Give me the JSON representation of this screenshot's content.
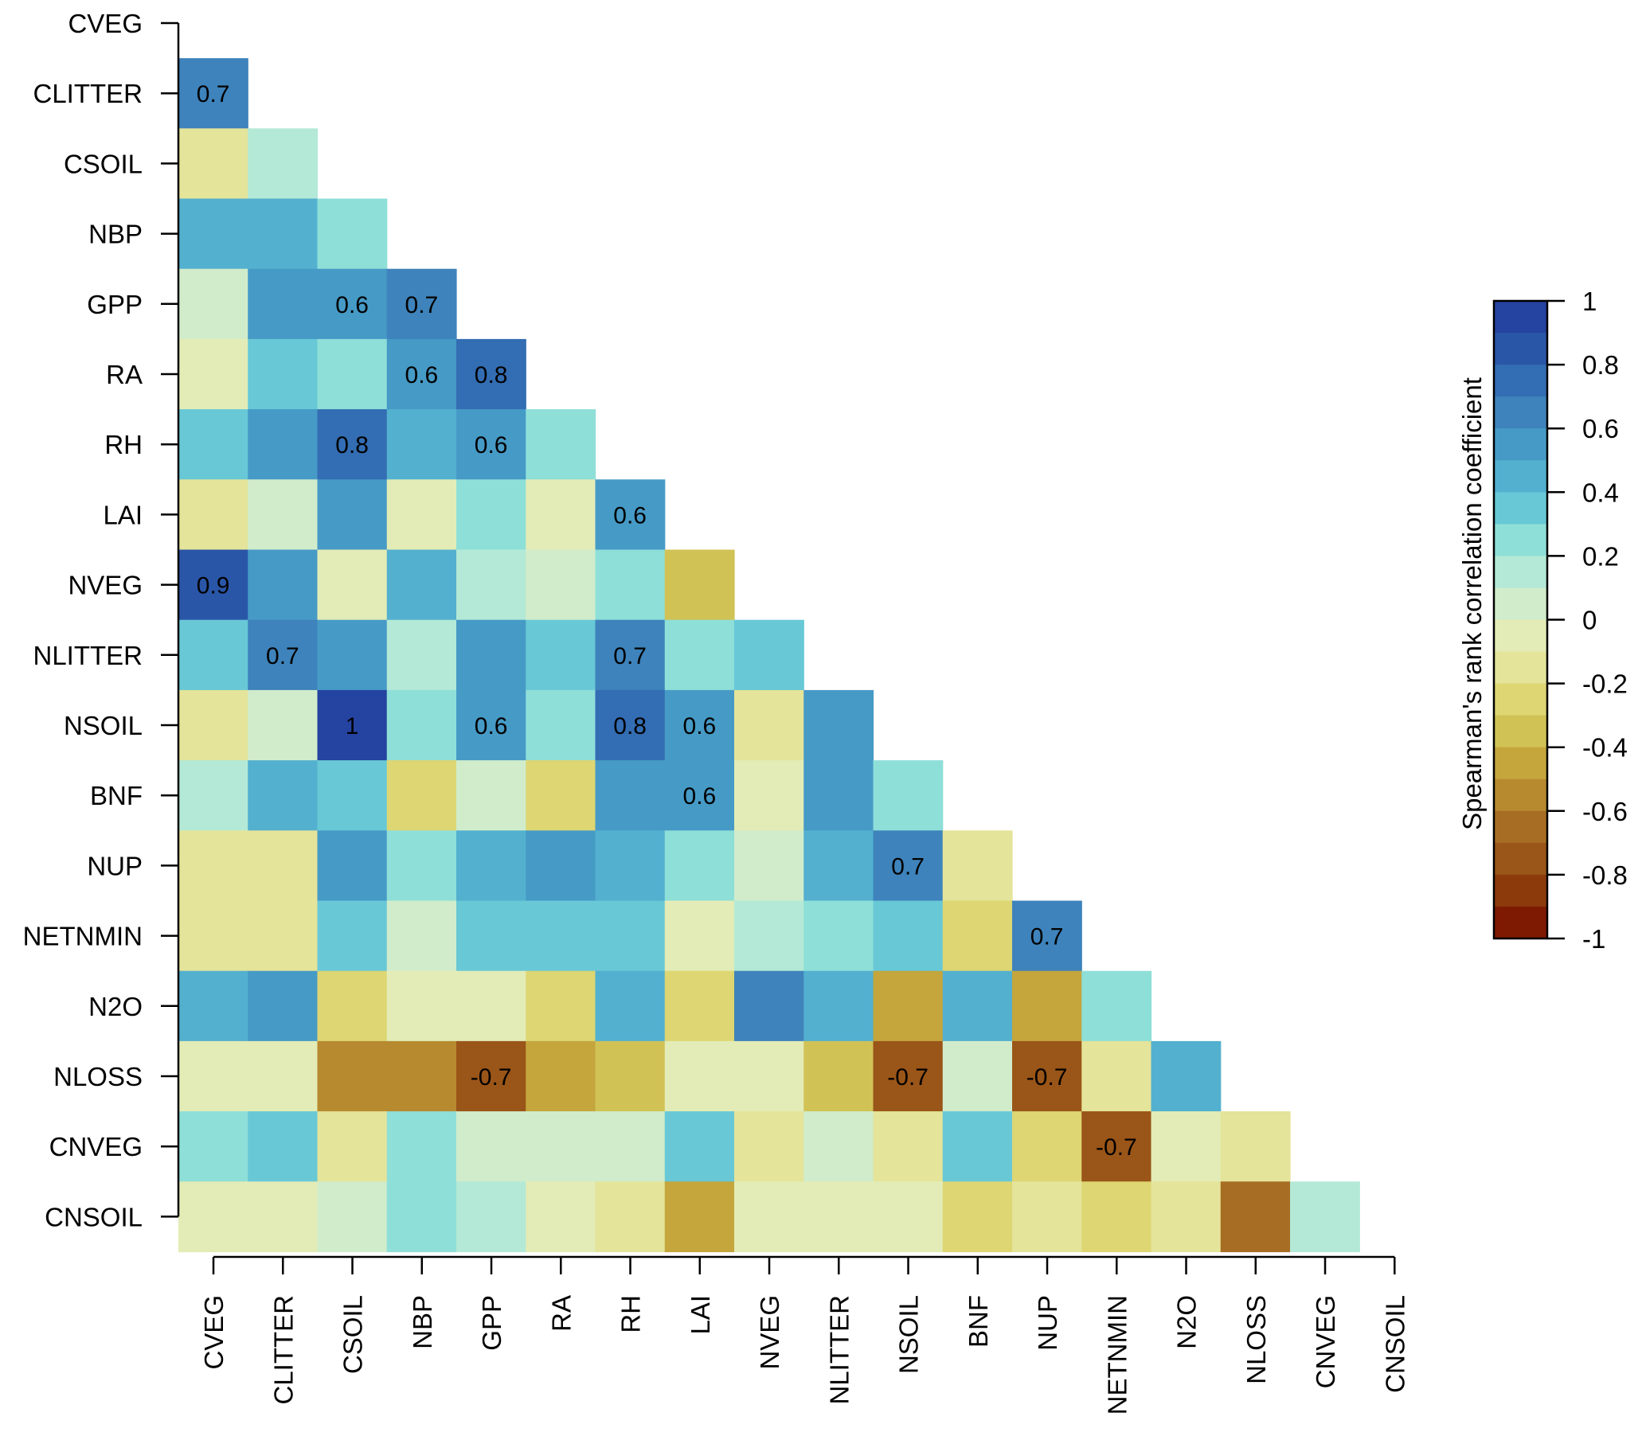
{
  "chart_data": {
    "type": "heatmap",
    "title": "",
    "subtype": "lower-triangular correlation matrix",
    "variables": [
      "CVEG",
      "CLITTER",
      "CSOIL",
      "NBP",
      "GPP",
      "RA",
      "RH",
      "LAI",
      "NVEG",
      "NLITTER",
      "NSOIL",
      "BNF",
      "NUP",
      "NETNMIN",
      "N2O",
      "NLOSS",
      "CNVEG",
      "CNSOIL"
    ],
    "rows": [
      "CVEG",
      "CLITTER",
      "CSOIL",
      "NBP",
      "GPP",
      "RA",
      "RH",
      "LAI",
      "NVEG",
      "NLITTER",
      "NSOIL",
      "BNF",
      "NUP",
      "NETNMIN",
      "N2O",
      "NLOSS",
      "CNVEG",
      "CNSOIL"
    ],
    "columns": [
      "CVEG",
      "CLITTER",
      "CSOIL",
      "NBP",
      "GPP",
      "RA",
      "RH",
      "LAI",
      "NVEG",
      "NLITTER",
      "NSOIL",
      "BNF",
      "NUP",
      "NETNMIN",
      "N2O",
      "NLOSS",
      "CNVEG",
      "CNSOIL"
    ],
    "values": [
      [],
      [
        0.7
      ],
      [
        -0.15,
        0.15
      ],
      [
        0.45,
        0.45,
        0.25
      ],
      [
        0.05,
        0.55,
        0.6,
        0.7
      ],
      [
        -0.05,
        0.35,
        0.25,
        0.6,
        0.8
      ],
      [
        0.35,
        0.55,
        0.8,
        0.45,
        0.6,
        0.25
      ],
      [
        -0.15,
        0.05,
        0.55,
        -0.05,
        0.25,
        -0.05,
        0.6
      ],
      [
        0.9,
        0.55,
        -0.05,
        0.45,
        0.15,
        0.05,
        0.25,
        -0.35
      ],
      [
        0.35,
        0.7,
        0.55,
        0.15,
        0.55,
        0.35,
        0.7,
        0.25,
        0.35
      ],
      [
        -0.15,
        0.05,
        1.0,
        0.25,
        0.6,
        0.25,
        0.8,
        0.6,
        -0.15,
        0.55
      ],
      [
        0.15,
        0.45,
        0.35,
        -0.25,
        0.05,
        -0.25,
        0.55,
        0.6,
        -0.05,
        0.55,
        0.25
      ],
      [
        -0.15,
        -0.15,
        0.55,
        0.25,
        0.45,
        0.55,
        0.45,
        0.25,
        0.05,
        0.45,
        0.7,
        -0.15
      ],
      [
        -0.15,
        -0.15,
        0.35,
        0.05,
        0.35,
        0.35,
        0.35,
        -0.05,
        0.15,
        0.25,
        0.35,
        -0.25,
        0.7
      ],
      [
        0.45,
        0.55,
        -0.25,
        -0.05,
        -0.05,
        -0.25,
        0.45,
        -0.25,
        0.65,
        0.45,
        -0.45,
        0.45,
        -0.45,
        0.25
      ],
      [
        -0.05,
        -0.05,
        -0.55,
        -0.55,
        -0.7,
        -0.45,
        -0.35,
        -0.05,
        -0.05,
        -0.35,
        -0.7,
        0.05,
        -0.75,
        -0.15,
        0.45
      ],
      [
        0.25,
        0.35,
        -0.15,
        0.25,
        0.05,
        0.05,
        0.05,
        0.35,
        -0.15,
        0.05,
        -0.15,
        0.35,
        -0.25,
        -0.75,
        -0.05,
        -0.15
      ],
      [
        -0.05,
        -0.05,
        0.05,
        0.25,
        0.15,
        -0.05,
        -0.15,
        -0.45,
        -0.05,
        -0.05,
        -0.05,
        -0.25,
        -0.15,
        -0.25,
        -0.15,
        -0.65,
        0.15
      ]
    ],
    "annotations": [
      {
        "row": "CLITTER",
        "col": "CVEG",
        "text": "0.7"
      },
      {
        "row": "GPP",
        "col": "CSOIL",
        "text": "0.6"
      },
      {
        "row": "GPP",
        "col": "NBP",
        "text": "0.7"
      },
      {
        "row": "RA",
        "col": "NBP",
        "text": "0.6"
      },
      {
        "row": "RA",
        "col": "GPP",
        "text": "0.8"
      },
      {
        "row": "RH",
        "col": "CSOIL",
        "text": "0.8"
      },
      {
        "row": "RH",
        "col": "GPP",
        "text": "0.6"
      },
      {
        "row": "LAI",
        "col": "RH",
        "text": "0.6"
      },
      {
        "row": "NVEG",
        "col": "CVEG",
        "text": "0.9"
      },
      {
        "row": "NLITTER",
        "col": "CLITTER",
        "text": "0.7"
      },
      {
        "row": "NLITTER",
        "col": "RH",
        "text": "0.7"
      },
      {
        "row": "NSOIL",
        "col": "CSOIL",
        "text": "1"
      },
      {
        "row": "NSOIL",
        "col": "GPP",
        "text": "0.6"
      },
      {
        "row": "NSOIL",
        "col": "RH",
        "text": "0.8"
      },
      {
        "row": "NSOIL",
        "col": "LAI",
        "text": "0.6"
      },
      {
        "row": "BNF",
        "col": "LAI",
        "text": "0.6"
      },
      {
        "row": "NUP",
        "col": "NSOIL",
        "text": "0.7"
      },
      {
        "row": "NETNMIN",
        "col": "NUP",
        "text": "0.7"
      },
      {
        "row": "NLOSS",
        "col": "GPP",
        "text": "-0.7"
      },
      {
        "row": "NLOSS",
        "col": "NSOIL",
        "text": "-0.7"
      },
      {
        "row": "NLOSS",
        "col": "NUP",
        "text": "-0.7"
      },
      {
        "row": "CNVEG",
        "col": "NETNMIN",
        "text": "-0.7"
      }
    ],
    "colorbar": {
      "title": "Spearman's rank correlation coefficient",
      "range": [
        -1,
        1
      ],
      "bin_width": 0.1,
      "ticks": [
        1,
        0.8,
        0.6,
        0.4,
        0.2,
        0,
        -0.2,
        -0.4,
        -0.6,
        -0.8,
        -1
      ],
      "tick_labels": [
        "1",
        "0.8",
        "0.6",
        "0.4",
        "0.2",
        "0",
        "-0.2",
        "-0.4",
        "-0.6",
        "-0.8",
        "-1"
      ],
      "colors_high_to_low": [
        "#2543A0",
        "#2A56A8",
        "#336DB3",
        "#3E83BB",
        "#469AC6",
        "#53B0CF",
        "#68C8D6",
        "#8EDFD8",
        "#B3E9D6",
        "#D1ECCB",
        "#E3ECB6",
        "#E4E49A",
        "#DDD673",
        "#D1C256",
        "#C4A63D",
        "#B78A2F",
        "#A86D24",
        "#9A5518",
        "#8C3A0C",
        "#7E1A02"
      ],
      "placement": "right"
    },
    "xlabel": "",
    "ylabel": "",
    "grid": false
  }
}
